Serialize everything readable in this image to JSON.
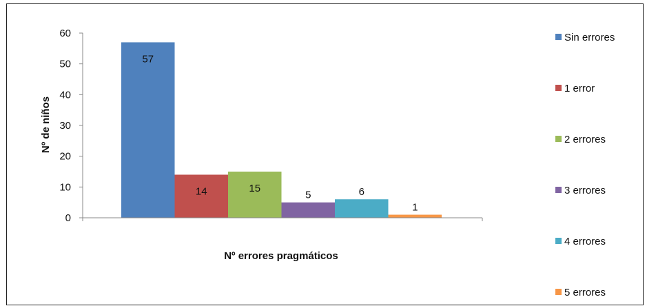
{
  "chart_data": {
    "type": "bar",
    "title": "",
    "xlabel": "Nº errores pragmáticos",
    "ylabel": "Nº de niños",
    "ylim": [
      0,
      60
    ],
    "yticks": [
      0,
      10,
      20,
      30,
      40,
      50,
      60
    ],
    "grid": false,
    "legend_position": "right",
    "series": [
      {
        "name": "Sin errores",
        "values": [
          57
        ],
        "color": "#4F81BD",
        "label": "57"
      },
      {
        "name": "1 error",
        "values": [
          14
        ],
        "color": "#C0504D",
        "label": "14"
      },
      {
        "name": "2 errores",
        "values": [
          15
        ],
        "color": "#9BBB59",
        "label": "15"
      },
      {
        "name": "3 errores",
        "values": [
          5
        ],
        "color": "#8064A2",
        "label": "5"
      },
      {
        "name": "4 errores",
        "values": [
          6
        ],
        "color": "#4BACC6",
        "label": "6"
      },
      {
        "name": "5 errores",
        "values": [
          1
        ],
        "color": "#F79646",
        "label": "1"
      }
    ]
  }
}
